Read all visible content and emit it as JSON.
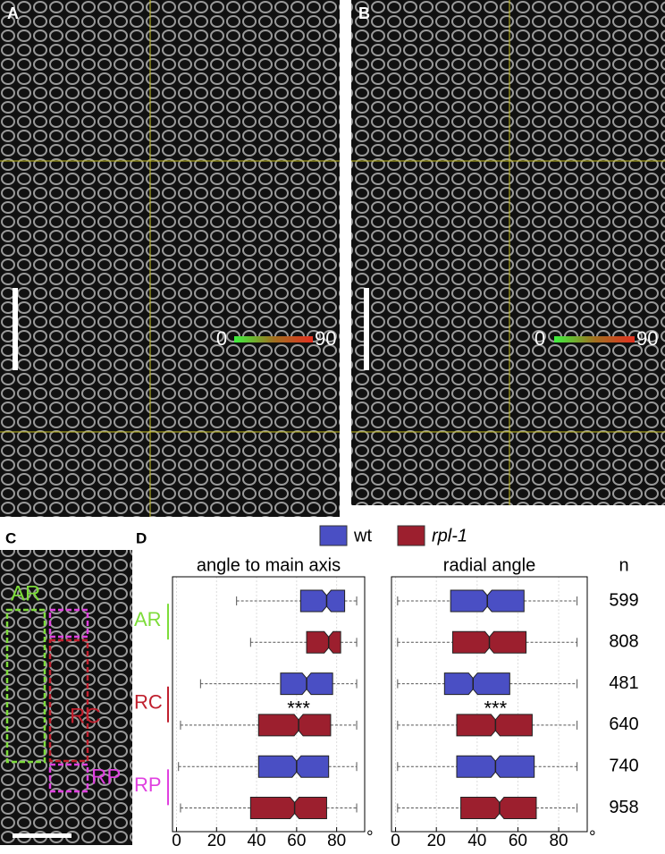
{
  "panels": {
    "A": {
      "label": "A",
      "colorbar": [
        0,
        90
      ]
    },
    "B": {
      "label": "B",
      "colorbar": [
        0,
        90
      ]
    },
    "C": {
      "label": "C",
      "regions": [
        "AR",
        "RC",
        "RP"
      ]
    },
    "D": {
      "label": "D"
    }
  },
  "n_column": {
    "title": "n",
    "values": [
      599,
      808,
      481,
      640,
      740,
      958
    ]
  },
  "chart_data": [
    {
      "type": "box",
      "title": "angle to main axis",
      "groups": [
        "AR",
        "RC",
        "RP"
      ],
      "group_colors": [
        "#7ddc3a",
        "#c0202e",
        "#e040e0"
      ],
      "xlim": [
        -2,
        94
      ],
      "xticks": [
        0,
        20,
        40,
        60,
        80
      ],
      "x_unit": "°",
      "series": [
        {
          "name": "wt",
          "color": "#4a4fc4",
          "whislo": [
            30,
            12,
            1
          ],
          "q1": [
            62,
            52,
            41
          ],
          "med": [
            75,
            65,
            60
          ],
          "q3": [
            84,
            78,
            76
          ],
          "whishi": [
            90,
            90,
            90
          ]
        },
        {
          "name": "rpl-1",
          "color": "#9c1f2e",
          "whislo": [
            37,
            2,
            2
          ],
          "q1": [
            65,
            41,
            37
          ],
          "med": [
            76,
            61,
            59
          ],
          "q3": [
            82,
            77,
            75
          ],
          "whishi": [
            90,
            90,
            90
          ]
        }
      ],
      "annotation": {
        "text": "***",
        "group": "RC"
      }
    },
    {
      "type": "box",
      "title": "radial angle",
      "xlim": [
        -2,
        94
      ],
      "xticks": [
        0,
        20,
        40,
        60,
        80
      ],
      "x_unit": "°",
      "series": [
        {
          "color": "#4a4fc4",
          "whislo": [
            1,
            1,
            1
          ],
          "q1": [
            27,
            24,
            30
          ],
          "med": [
            45,
            38,
            49
          ],
          "q3": [
            63,
            56,
            68
          ],
          "whishi": [
            89,
            89,
            89
          ]
        },
        {
          "color": "#9c1f2e",
          "whislo": [
            1,
            1,
            1
          ],
          "q1": [
            28,
            30,
            32
          ],
          "med": [
            46,
            49,
            51
          ],
          "q3": [
            64,
            67,
            69
          ],
          "whishi": [
            89,
            89,
            89
          ]
        }
      ],
      "annotation": {
        "text": "***",
        "group": "RC"
      }
    }
  ]
}
